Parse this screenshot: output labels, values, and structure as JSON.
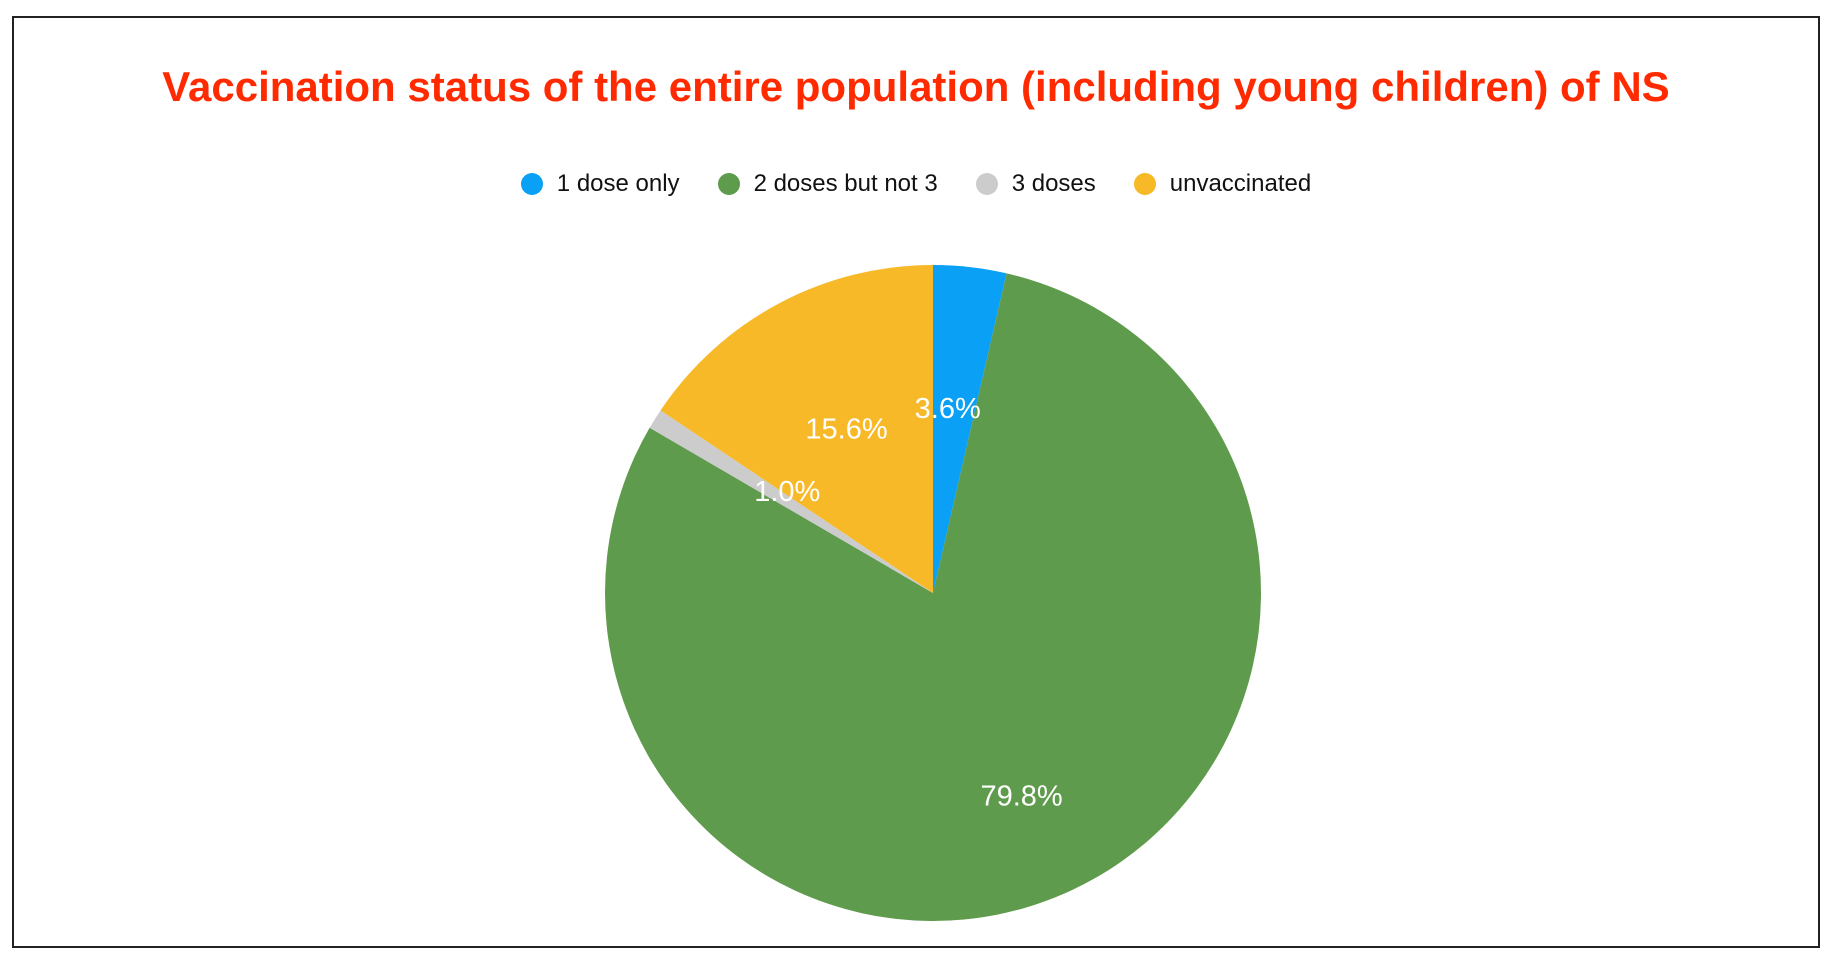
{
  "chart_data": {
    "type": "pie",
    "title": "Vaccination status of the entire population (including young children) of NS",
    "title_color": "#ff2a00",
    "legend_position": "top",
    "slices": [
      {
        "name": "1 dose only",
        "value": 3.6,
        "label": "3.6%",
        "color": "#0aa0f5"
      },
      {
        "name": "2 doses but not 3",
        "value": 79.8,
        "label": "79.8%",
        "color": "#5f9b4c"
      },
      {
        "name": "3 doses",
        "value": 1.0,
        "label": "1.0%",
        "color": "#cccccc"
      },
      {
        "name": "unvaccinated",
        "value": 15.6,
        "label": "15.6%",
        "color": "#f7b927"
      }
    ]
  }
}
